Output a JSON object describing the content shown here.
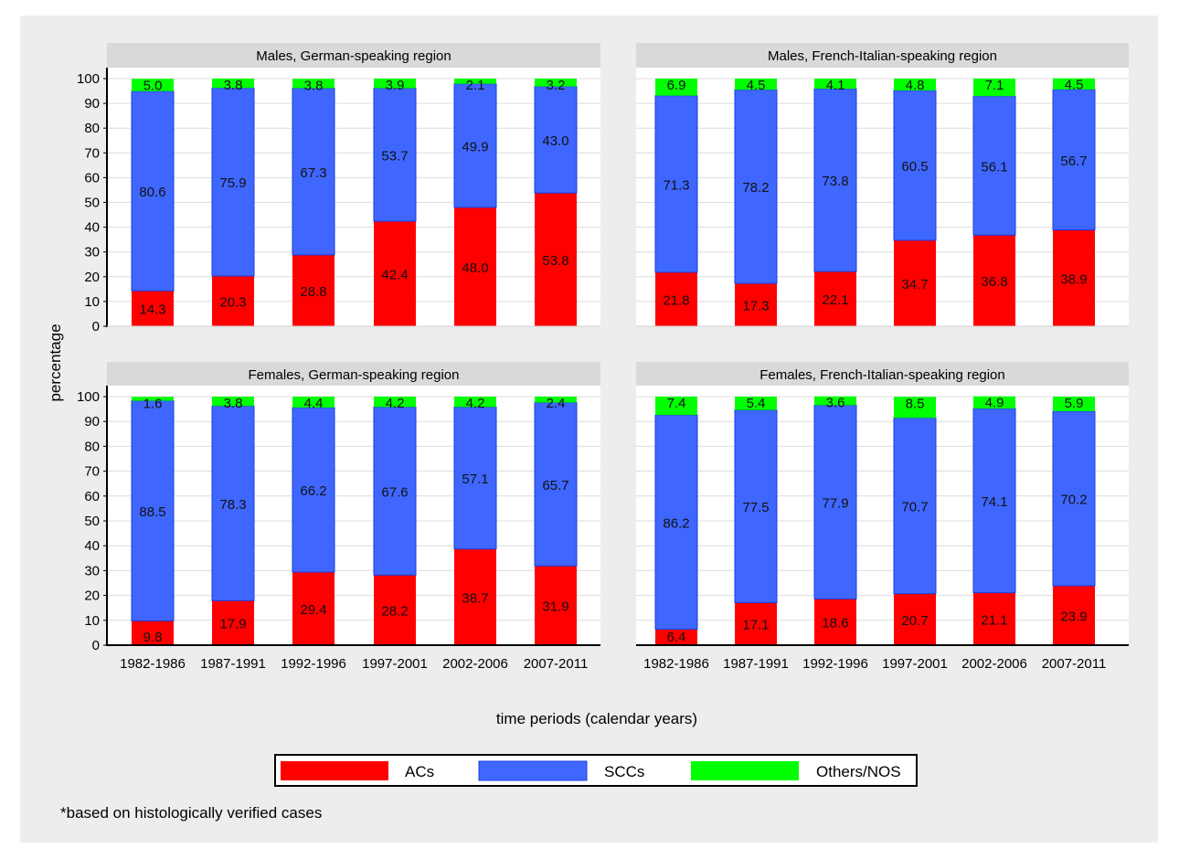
{
  "chart_data": [
    {
      "type": "bar",
      "stacked": true,
      "title": "Males, German-speaking region",
      "categories": [
        "1982-1986",
        "1987-1991",
        "1992-1996",
        "1997-2001",
        "2002-2006",
        "2007-2011"
      ],
      "series": [
        {
          "name": "ACs",
          "values": [
            14.3,
            20.3,
            28.8,
            42.4,
            48.0,
            53.8
          ]
        },
        {
          "name": "SCCs",
          "values": [
            80.6,
            75.9,
            67.3,
            53.7,
            49.9,
            43.0
          ]
        },
        {
          "name": "Others/NOS",
          "values": [
            5.0,
            3.8,
            3.8,
            3.9,
            2.1,
            3.2
          ]
        }
      ],
      "ylim": [
        0,
        100
      ],
      "yticks": [
        0,
        10,
        20,
        30,
        40,
        50,
        60,
        70,
        80,
        90,
        100
      ],
      "show_y_ticks": true,
      "show_x_ticks": false,
      "grid": true
    },
    {
      "type": "bar",
      "stacked": true,
      "title": "Males, French-Italian-speaking region",
      "categories": [
        "1982-1986",
        "1987-1991",
        "1992-1996",
        "1997-2001",
        "2002-2006",
        "2007-2011"
      ],
      "series": [
        {
          "name": "ACs",
          "values": [
            21.8,
            17.3,
            22.1,
            34.7,
            36.8,
            38.9
          ]
        },
        {
          "name": "SCCs",
          "values": [
            71.3,
            78.2,
            73.8,
            60.5,
            56.1,
            56.7
          ]
        },
        {
          "name": "Others/NOS",
          "values": [
            6.9,
            4.5,
            4.1,
            4.8,
            7.1,
            4.5
          ]
        }
      ],
      "ylim": [
        0,
        100
      ],
      "yticks": [
        0,
        10,
        20,
        30,
        40,
        50,
        60,
        70,
        80,
        90,
        100
      ],
      "show_y_ticks": false,
      "show_x_ticks": false,
      "grid": true
    },
    {
      "type": "bar",
      "stacked": true,
      "title": "Females, German-speaking region",
      "categories": [
        "1982-1986",
        "1987-1991",
        "1992-1996",
        "1997-2001",
        "2002-2006",
        "2007-2011"
      ],
      "series": [
        {
          "name": "ACs",
          "values": [
            9.8,
            17.9,
            29.4,
            28.2,
            38.7,
            31.9
          ]
        },
        {
          "name": "SCCs",
          "values": [
            88.5,
            78.3,
            66.2,
            67.6,
            57.1,
            65.7
          ]
        },
        {
          "name": "Others/NOS",
          "values": [
            1.6,
            3.8,
            4.4,
            4.2,
            4.2,
            2.4
          ]
        }
      ],
      "ylim": [
        0,
        100
      ],
      "yticks": [
        0,
        10,
        20,
        30,
        40,
        50,
        60,
        70,
        80,
        90,
        100
      ],
      "show_y_ticks": true,
      "show_x_ticks": true,
      "grid": true
    },
    {
      "type": "bar",
      "stacked": true,
      "title": "Females, French-Italian-speaking region",
      "categories": [
        "1982-1986",
        "1987-1991",
        "1992-1996",
        "1997-2001",
        "2002-2006",
        "2007-2011"
      ],
      "series": [
        {
          "name": "ACs",
          "values": [
            6.4,
            17.1,
            18.6,
            20.7,
            21.1,
            23.9
          ]
        },
        {
          "name": "SCCs",
          "values": [
            86.2,
            77.5,
            77.9,
            70.7,
            74.1,
            70.2
          ]
        },
        {
          "name": "Others/NOS",
          "values": [
            7.4,
            5.4,
            3.6,
            8.5,
            4.9,
            5.9
          ]
        }
      ],
      "ylim": [
        0,
        100
      ],
      "yticks": [
        0,
        10,
        20,
        30,
        40,
        50,
        60,
        70,
        80,
        90,
        100
      ],
      "show_y_ticks": false,
      "show_x_ticks": true,
      "grid": true
    }
  ],
  "shared": {
    "ylabel": "percentage",
    "xlabel": "time periods (calendar years)",
    "legend": {
      "position": "bottom-center",
      "entries": [
        {
          "label": "ACs",
          "color": "#ff0000"
        },
        {
          "label": "SCCs",
          "color": "#3f67ff"
        },
        {
          "label": "Others/NOS",
          "color": "#00ff00"
        }
      ]
    },
    "footnote": "*based on histologically verified cases"
  },
  "colors": {
    "ACs": "#ff0000",
    "SCCs": "#3f67ff",
    "SCCs_border": "#1a3fe0",
    "Others": "#00ff00",
    "background": "#ededed",
    "panel_header": "#d9d9d9",
    "gridline": "#dcdcdc"
  }
}
